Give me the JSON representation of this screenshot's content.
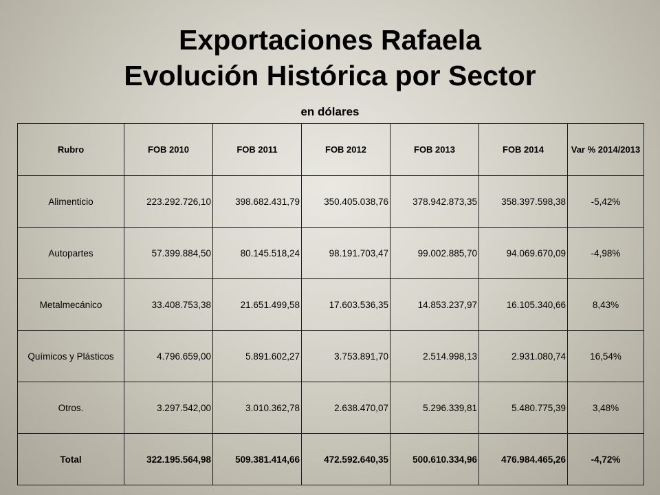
{
  "title_line1": "Exportaciones Rafaela",
  "title_line2": "Evolución Histórica por Sector",
  "subtitle": "en dólares",
  "table": {
    "headers": [
      "Rubro",
      "FOB 2010",
      "FOB 2011",
      "FOB 2012",
      "FOB 2013",
      "FOB 2014",
      "Var % 2014/2013"
    ],
    "rows": [
      [
        "Alimenticio",
        "223.292.726,10",
        "398.682.431,79",
        "350.405.038,76",
        "378.942.873,35",
        "358.397.598,38",
        "-5,42%"
      ],
      [
        "Autopartes",
        "57.399.884,50",
        "80.145.518,24",
        "98.191.703,47",
        "99.002.885,70",
        "94.069.670,09",
        "-4,98%"
      ],
      [
        "Metalmecánico",
        "33.408.753,38",
        "21.651.499,58",
        "17.603.536,35",
        "14.853.237,97",
        "16.105.340,66",
        "8,43%"
      ],
      [
        "Químicos y Plásticos",
        "4.796.659,00",
        "5.891.602,27",
        "3.753.891,70",
        "2.514.998,13",
        "2.931.080,74",
        "16,54%"
      ],
      [
        "Otros.",
        "3.297.542,00",
        "3.010.362,78",
        "2.638.470,07",
        "5.296.339,81",
        "5.480.775,39",
        "3,48%"
      ]
    ],
    "total": [
      "Total",
      "322.195.564,98",
      "509.381.414,66",
      "472.592.640,35",
      "500.610.334,96",
      "476.984.465,26",
      "-4,72%"
    ]
  }
}
